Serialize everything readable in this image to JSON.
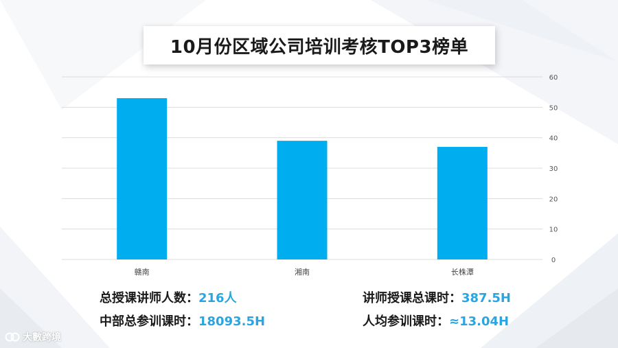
{
  "title": "10月份区域公司培训考核TOP3榜单",
  "chart_data": {
    "type": "bar",
    "categories": [
      "赣南",
      "湘南",
      "长株潭"
    ],
    "values": [
      53,
      39,
      37
    ],
    "ylim": [
      0,
      60
    ],
    "yticks": [
      "0",
      "10",
      "20",
      "30",
      "40",
      "50",
      "60"
    ],
    "y_axis_side": "right",
    "grid": true,
    "bar_color": "#00aeef"
  },
  "stats": {
    "trainers_label": "总授课讲师人数：",
    "trainers_value": "216人",
    "hq_hours_label": "中部总参训课时：",
    "hq_hours_value": "18093.5H",
    "teach_hours_label": "讲师授课总课时：",
    "teach_hours_value": "387.5H",
    "avg_hours_label": "人均参训课时：",
    "avg_hours_value": "≈13.04H"
  },
  "logo": {
    "text": "大數跨境",
    "icon": "logo-icon"
  }
}
